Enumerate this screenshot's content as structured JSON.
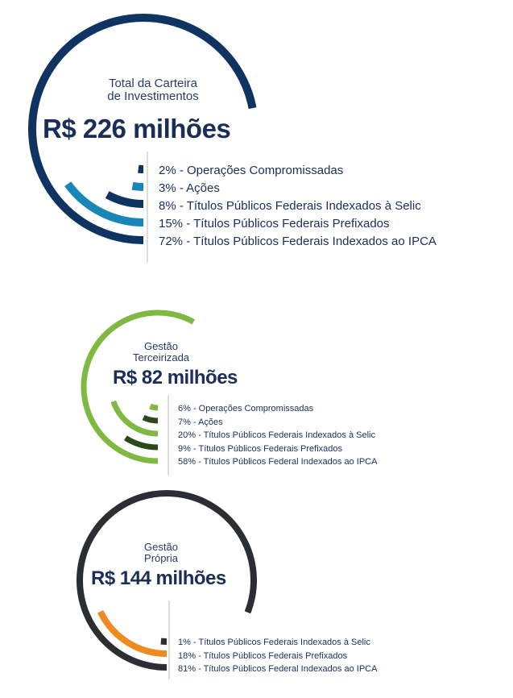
{
  "chart_data": [
    {
      "type": "radial-bar",
      "title": "Total da Carteira de Investimentos",
      "title_lines": [
        "Total da Carteira",
        "de Investimentos"
      ],
      "total": "R$ 226 milhões",
      "categories": [
        "Operações Compromissadas",
        "Ações",
        "Títulos Públicos Federais Indexados à Selic",
        "Títulos Públicos Federais Prefixados",
        "Títulos Públicos Federais Indexados ao IPCA"
      ],
      "values": [
        2,
        3,
        8,
        15,
        72
      ],
      "labels": [
        "2% - Operações Compromissadas",
        "3% - Ações",
        "8% - Títulos Públicos Federais  Indexados à Selic",
        "15% - Títulos Públicos Federais Prefixados",
        "72% - Títulos Públicos Federais  Indexados ao IPCA"
      ],
      "colors": [
        "#0f3461",
        "#1a86b8",
        "#0f3461",
        "#1a86b8",
        "#0f3461"
      ]
    },
    {
      "type": "radial-bar",
      "title": "Gestão Terceirizada",
      "title_lines": [
        "Gestão",
        "Terceirizada"
      ],
      "total": "R$ 82 milhões",
      "categories": [
        "Operações Compromissadas",
        "Ações",
        "Títulos Públicos Federais Indexados à Selic",
        "Títulos Públicos Federais Prefixados",
        "Títulos Públicos Federal Indexados ao IPCA"
      ],
      "values": [
        6,
        7,
        20,
        9,
        58
      ],
      "labels": [
        "6% - Operações Compromissadas",
        "7% - Ações",
        "20% - Títulos Públicos Federais Indexados à Selic",
        "9% - Títulos Públicos Federais Prefixados",
        "58% - Títulos Públicos Federal Indexados ao IPCA"
      ],
      "colors": [
        "#80b942",
        "#2b4a1a",
        "#80b942",
        "#2b4a1a",
        "#80b942"
      ]
    },
    {
      "type": "radial-bar",
      "title": "Gestão Própria",
      "title_lines": [
        "Gestão",
        "Própria"
      ],
      "total": "R$ 144 milhões",
      "categories": [
        "Títulos Públicos Federais Indexados à Selic",
        "Títulos Públicos Federais Prefixados",
        "Títulos Públicos Federal Indexados ao IPCA"
      ],
      "values": [
        1,
        18,
        81
      ],
      "labels": [
        "1% - Títulos Públicos Federais Indexados à Selic",
        "18% - Títulos Públicos Federais Prefixados",
        "81% - Títulos Públicos Federal Indexados ao IPCA"
      ],
      "colors": [
        "#2b2e33",
        "#ee8a1f",
        "#2b2e33"
      ]
    }
  ]
}
